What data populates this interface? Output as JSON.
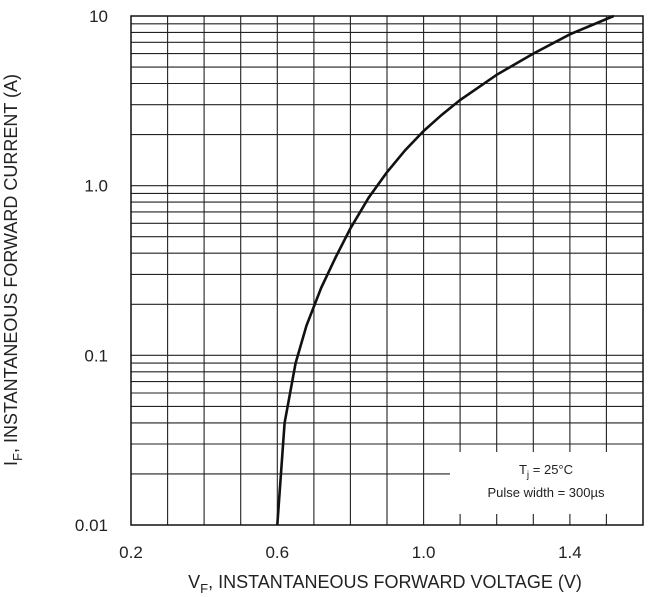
{
  "chart_data": {
    "type": "line",
    "xlabel": "V",
    "xlabel_sub": "F",
    "xlabel_rest": ", INSTANTANEOUS FORWARD VOLTAGE (V)",
    "ylabel": "I",
    "ylabel_sub": "F",
    "ylabel_rest": ", INSTANTANEOUS FORWARD CURRENT (A)",
    "xlim": [
      0.2,
      1.6
    ],
    "ylim": [
      0.01,
      10
    ],
    "y_scale": "log",
    "grid": true,
    "x_ticks": [
      {
        "value": 0.2,
        "label": "0.2"
      },
      {
        "value": 0.6,
        "label": "0.6"
      },
      {
        "value": 1.0,
        "label": "1.0"
      },
      {
        "value": 1.4,
        "label": "1.4"
      }
    ],
    "y_ticks": [
      {
        "value": 0.01,
        "label": "0.01"
      },
      {
        "value": 0.1,
        "label": "0.1"
      },
      {
        "value": 1.0,
        "label": "1.0"
      },
      {
        "value": 10,
        "label": "10"
      }
    ],
    "series": [
      {
        "x": [
          0.6,
          0.62,
          0.65,
          0.68,
          0.72,
          0.76,
          0.8,
          0.85,
          0.9,
          0.95,
          1.0,
          1.05,
          1.1,
          1.2,
          1.3,
          1.4,
          1.52
        ],
        "y": [
          0.01,
          0.04,
          0.09,
          0.15,
          0.25,
          0.38,
          0.56,
          0.85,
          1.2,
          1.62,
          2.1,
          2.62,
          3.2,
          4.5,
          6.0,
          7.8,
          10.0
        ]
      }
    ],
    "annotation": {
      "line1_main": "T",
      "line1_sub": "j",
      "line1_rest": " = 25°C",
      "line2": "Pulse width = 300µs"
    }
  }
}
